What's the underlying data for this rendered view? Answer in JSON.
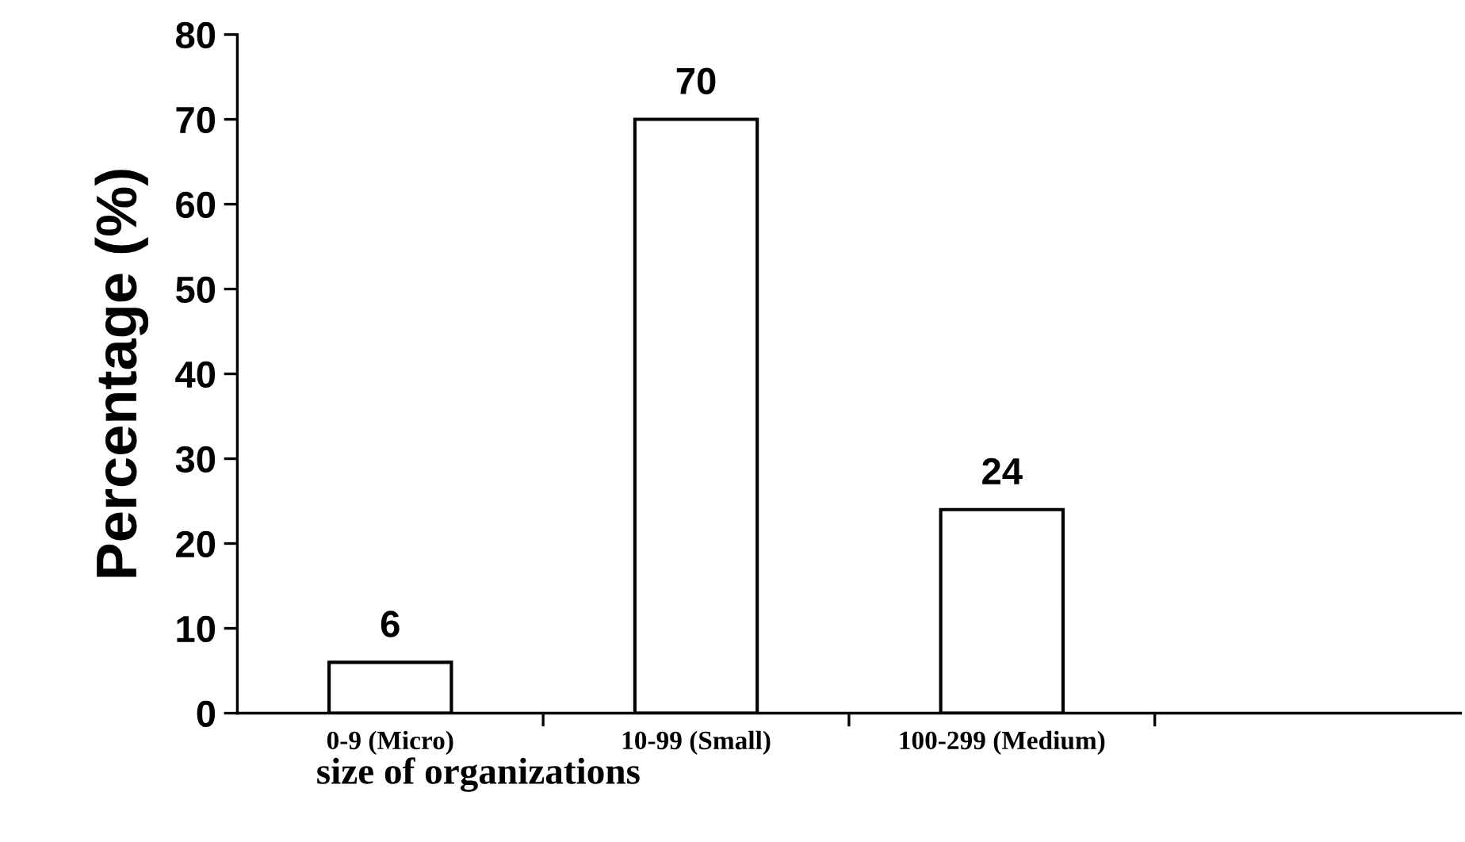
{
  "chart_data": {
    "type": "bar",
    "xlabel": "size of organizations",
    "ylabel": "Percentage (%)",
    "categories": [
      "0-9 (Micro)",
      "10-99 (Small)",
      "100-299 (Medium)",
      null
    ],
    "values": [
      6,
      70,
      24,
      null
    ],
    "color": "#ffffff",
    "ylim": [
      0,
      80
    ],
    "yticks": [
      0,
      10,
      20,
      30,
      40,
      50,
      60,
      70,
      80
    ],
    "grid": false,
    "data_labels": true
  }
}
